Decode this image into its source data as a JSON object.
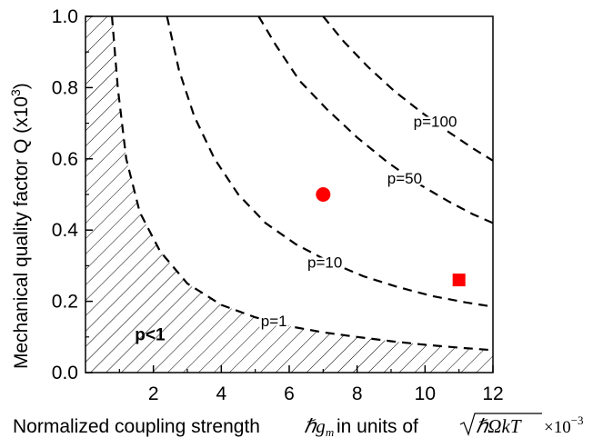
{
  "chart_data": {
    "type": "line",
    "xlabel": "Normalized coupling strength",
    "xlabel_symbol": "ℏg",
    "xlabel_symbol_sub": "m",
    "xlabel_units_text": "in units of",
    "xlabel_units_expr": "ℏΩkT",
    "xlabel_scale": "×10",
    "xlabel_scale_exp": "−3",
    "ylabel": "Mechanical quality factor Q (x10",
    "ylabel_exp": "3",
    "ylabel_close": ")",
    "xlim": [
      0,
      12
    ],
    "ylim": [
      0.0,
      1.0
    ],
    "xticks": [
      "2",
      "4",
      "6",
      "8",
      "10",
      "12"
    ],
    "yticks": [
      "0.0",
      "0.2",
      "0.4",
      "0.6",
      "0.8",
      "1.0"
    ],
    "series": [
      {
        "name": "p=1",
        "points": [
          [
            0.78,
            1.0
          ],
          [
            0.95,
            0.8
          ],
          [
            1.2,
            0.6
          ],
          [
            1.6,
            0.45
          ],
          [
            2.2,
            0.34
          ],
          [
            3.0,
            0.25
          ],
          [
            4.0,
            0.19
          ],
          [
            5.0,
            0.155
          ],
          [
            6.0,
            0.13
          ],
          [
            7.0,
            0.113
          ],
          [
            8.0,
            0.1
          ],
          [
            9.0,
            0.088
          ],
          [
            10.0,
            0.078
          ],
          [
            11.0,
            0.07
          ],
          [
            12.0,
            0.063
          ]
        ]
      },
      {
        "name": "p=10",
        "points": [
          [
            2.4,
            1.0
          ],
          [
            2.75,
            0.85
          ],
          [
            3.2,
            0.72
          ],
          [
            3.8,
            0.6
          ],
          [
            4.5,
            0.5
          ],
          [
            5.3,
            0.42
          ],
          [
            6.2,
            0.36
          ],
          [
            7.2,
            0.31
          ],
          [
            8.2,
            0.27
          ],
          [
            9.2,
            0.24
          ],
          [
            10.2,
            0.215
          ],
          [
            11.2,
            0.197
          ],
          [
            12.0,
            0.185
          ]
        ]
      },
      {
        "name": "p=50",
        "points": [
          [
            5.1,
            1.0
          ],
          [
            5.6,
            0.92
          ],
          [
            6.3,
            0.82
          ],
          [
            7.1,
            0.74
          ],
          [
            8.0,
            0.66
          ],
          [
            8.9,
            0.59
          ],
          [
            9.8,
            0.53
          ],
          [
            10.7,
            0.48
          ],
          [
            11.4,
            0.445
          ],
          [
            12.0,
            0.42
          ]
        ]
      },
      {
        "name": "p=100",
        "points": [
          [
            7.0,
            1.0
          ],
          [
            7.6,
            0.93
          ],
          [
            8.3,
            0.86
          ],
          [
            9.1,
            0.79
          ],
          [
            9.9,
            0.73
          ],
          [
            10.7,
            0.675
          ],
          [
            11.4,
            0.63
          ],
          [
            12.0,
            0.595
          ]
        ]
      }
    ],
    "curve_labels": [
      {
        "text": "p=1",
        "x": 5.55,
        "y": 0.13
      },
      {
        "text": "p=10",
        "x": 7.05,
        "y": 0.295
      },
      {
        "text": "p=50",
        "x": 9.4,
        "y": 0.53
      },
      {
        "text": "p=100",
        "x": 10.3,
        "y": 0.69
      }
    ],
    "region": {
      "label": "p<1",
      "label_x": 1.9,
      "label_y": 0.09,
      "hatched": true,
      "bounded_by": "p=1"
    },
    "markers": [
      {
        "shape": "circle",
        "x": 7.0,
        "y": 0.5,
        "color": "#ff0000"
      },
      {
        "shape": "square",
        "x": 11.0,
        "y": 0.26,
        "color": "#ff0000"
      }
    ],
    "grid": false,
    "line_color": "#000000"
  }
}
